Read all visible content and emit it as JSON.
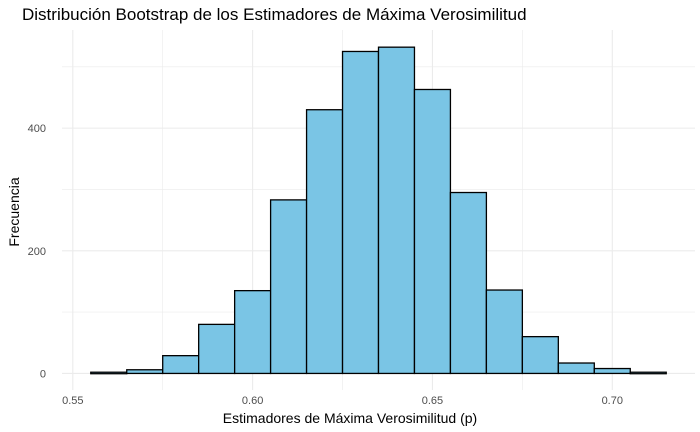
{
  "chart_data": {
    "type": "bar",
    "title": "Distribución Bootstrap de los Estimadores de Máxima Verosimilitud",
    "xlabel": "Estimadores de Máxima Verosimilitud (p)",
    "ylabel": "Frecuencia",
    "bins": [
      {
        "start": 0.555,
        "end": 0.565,
        "count": 2
      },
      {
        "start": 0.565,
        "end": 0.575,
        "count": 6
      },
      {
        "start": 0.575,
        "end": 0.585,
        "count": 29
      },
      {
        "start": 0.585,
        "end": 0.595,
        "count": 80
      },
      {
        "start": 0.595,
        "end": 0.605,
        "count": 135
      },
      {
        "start": 0.605,
        "end": 0.615,
        "count": 283
      },
      {
        "start": 0.615,
        "end": 0.625,
        "count": 430
      },
      {
        "start": 0.625,
        "end": 0.635,
        "count": 525
      },
      {
        "start": 0.635,
        "end": 0.645,
        "count": 532
      },
      {
        "start": 0.645,
        "end": 0.655,
        "count": 463
      },
      {
        "start": 0.655,
        "end": 0.665,
        "count": 295
      },
      {
        "start": 0.665,
        "end": 0.675,
        "count": 136
      },
      {
        "start": 0.675,
        "end": 0.685,
        "count": 60
      },
      {
        "start": 0.685,
        "end": 0.695,
        "count": 17
      },
      {
        "start": 0.695,
        "end": 0.705,
        "count": 8
      },
      {
        "start": 0.705,
        "end": 0.715,
        "count": 2
      }
    ],
    "xlim": [
      0.547,
      0.723
    ],
    "ylim": [
      -27,
      560
    ],
    "x_ticks": [
      0.55,
      0.6,
      0.65,
      0.7
    ],
    "x_tick_labels": [
      "0.55",
      "0.60",
      "0.65",
      "0.70"
    ],
    "y_ticks": [
      0,
      200,
      400
    ],
    "y_tick_labels": [
      "0",
      "200",
      "400"
    ],
    "x_minor": [
      0.575,
      0.625,
      0.675
    ],
    "y_minor": [
      100,
      300,
      500
    ],
    "bar_fill": "#7AC5E5",
    "bar_edge": "#000000",
    "grid": true,
    "grid_color": "#EBEBEB",
    "background": "#FFFFFF"
  }
}
